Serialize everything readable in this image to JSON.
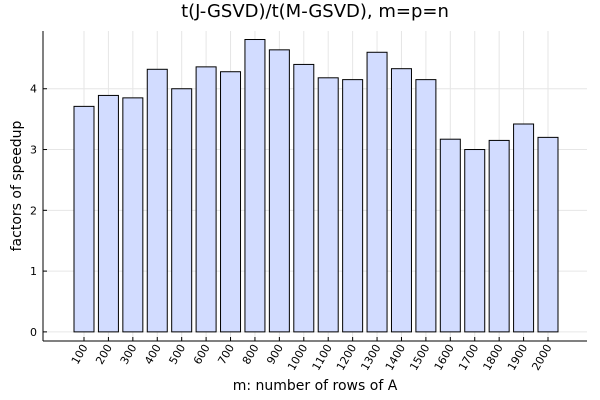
{
  "chart_data": {
    "type": "bar",
    "title": "t(J-GSVD)/t(M-GSVD), m=p=n",
    "xlabel": "m: number of rows of A",
    "ylabel": "factors of speedup",
    "categories": [
      "100",
      "200",
      "300",
      "400",
      "500",
      "600",
      "700",
      "800",
      "900",
      "1000",
      "1100",
      "1200",
      "1300",
      "1400",
      "1500",
      "1600",
      "1700",
      "1800",
      "1900",
      "2000"
    ],
    "values": [
      3.71,
      3.89,
      3.85,
      4.32,
      4.0,
      4.36,
      4.28,
      4.81,
      4.64,
      4.4,
      4.18,
      4.15,
      4.6,
      4.33,
      4.15,
      3.17,
      3.0,
      3.15,
      3.42,
      3.2
    ],
    "ylim": [
      -0.15,
      4.95
    ],
    "yticks": [
      0,
      1,
      2,
      3,
      4
    ],
    "grid": true,
    "legend": "none",
    "bar_color": "#d2dcff",
    "edge_color": "#000000"
  }
}
